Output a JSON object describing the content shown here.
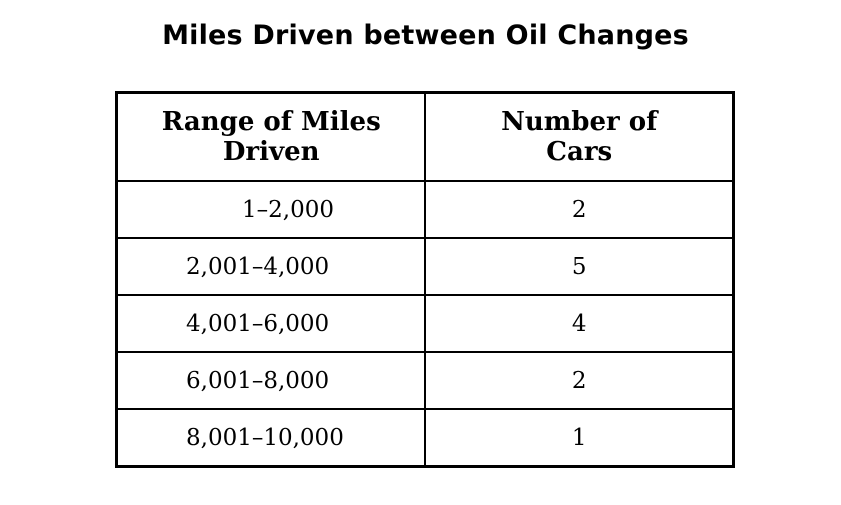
{
  "title": "Miles Driven between Oil Changes",
  "table": {
    "headers": {
      "range_line1": "Range of Miles",
      "range_line2": "Driven",
      "count_line1": "Number of",
      "count_line2": "Cars"
    },
    "rows": [
      {
        "range": "1–2,000",
        "count": "2"
      },
      {
        "range": "2,001–4,000",
        "count": "5"
      },
      {
        "range": "4,001–6,000",
        "count": "4"
      },
      {
        "range": "6,001–8,000",
        "count": "2"
      },
      {
        "range": "8,001–10,000",
        "count": "1"
      }
    ]
  }
}
